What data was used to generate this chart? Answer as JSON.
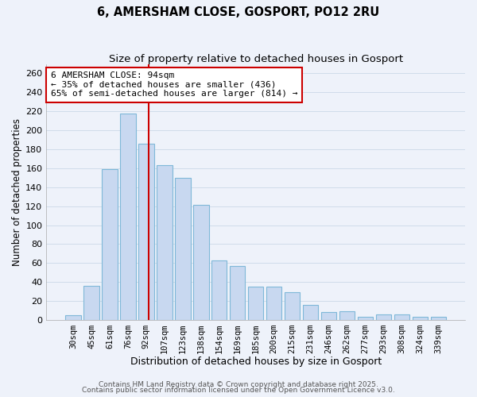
{
  "title": "6, AMERSHAM CLOSE, GOSPORT, PO12 2RU",
  "subtitle": "Size of property relative to detached houses in Gosport",
  "xlabel": "Distribution of detached houses by size in Gosport",
  "ylabel": "Number of detached properties",
  "bar_labels": [
    "30sqm",
    "45sqm",
    "61sqm",
    "76sqm",
    "92sqm",
    "107sqm",
    "123sqm",
    "138sqm",
    "154sqm",
    "169sqm",
    "185sqm",
    "200sqm",
    "215sqm",
    "231sqm",
    "246sqm",
    "262sqm",
    "277sqm",
    "293sqm",
    "308sqm",
    "324sqm",
    "339sqm"
  ],
  "bar_values": [
    5,
    36,
    159,
    218,
    186,
    163,
    150,
    121,
    63,
    57,
    35,
    35,
    29,
    16,
    8,
    9,
    3,
    6,
    6,
    3,
    3
  ],
  "bar_color": "#c8d8f0",
  "bar_edge_color": "#7fb8d8",
  "vline_x": 4.15,
  "vline_color": "#cc0000",
  "annotation_text": "6 AMERSHAM CLOSE: 94sqm\n← 35% of detached houses are smaller (436)\n65% of semi-detached houses are larger (814) →",
  "annotation_box_color": "#ffffff",
  "annotation_box_edge": "#cc0000",
  "ylim": [
    0,
    270
  ],
  "yticks": [
    0,
    20,
    40,
    60,
    80,
    100,
    120,
    140,
    160,
    180,
    200,
    220,
    240,
    260
  ],
  "grid_color": "#d0dcea",
  "background_color": "#eef2fa",
  "footer_line1": "Contains HM Land Registry data © Crown copyright and database right 2025.",
  "footer_line2": "Contains public sector information licensed under the Open Government Licence v3.0.",
  "title_fontsize": 10.5,
  "subtitle_fontsize": 9.5,
  "annotation_fontsize": 8,
  "footer_fontsize": 6.5
}
